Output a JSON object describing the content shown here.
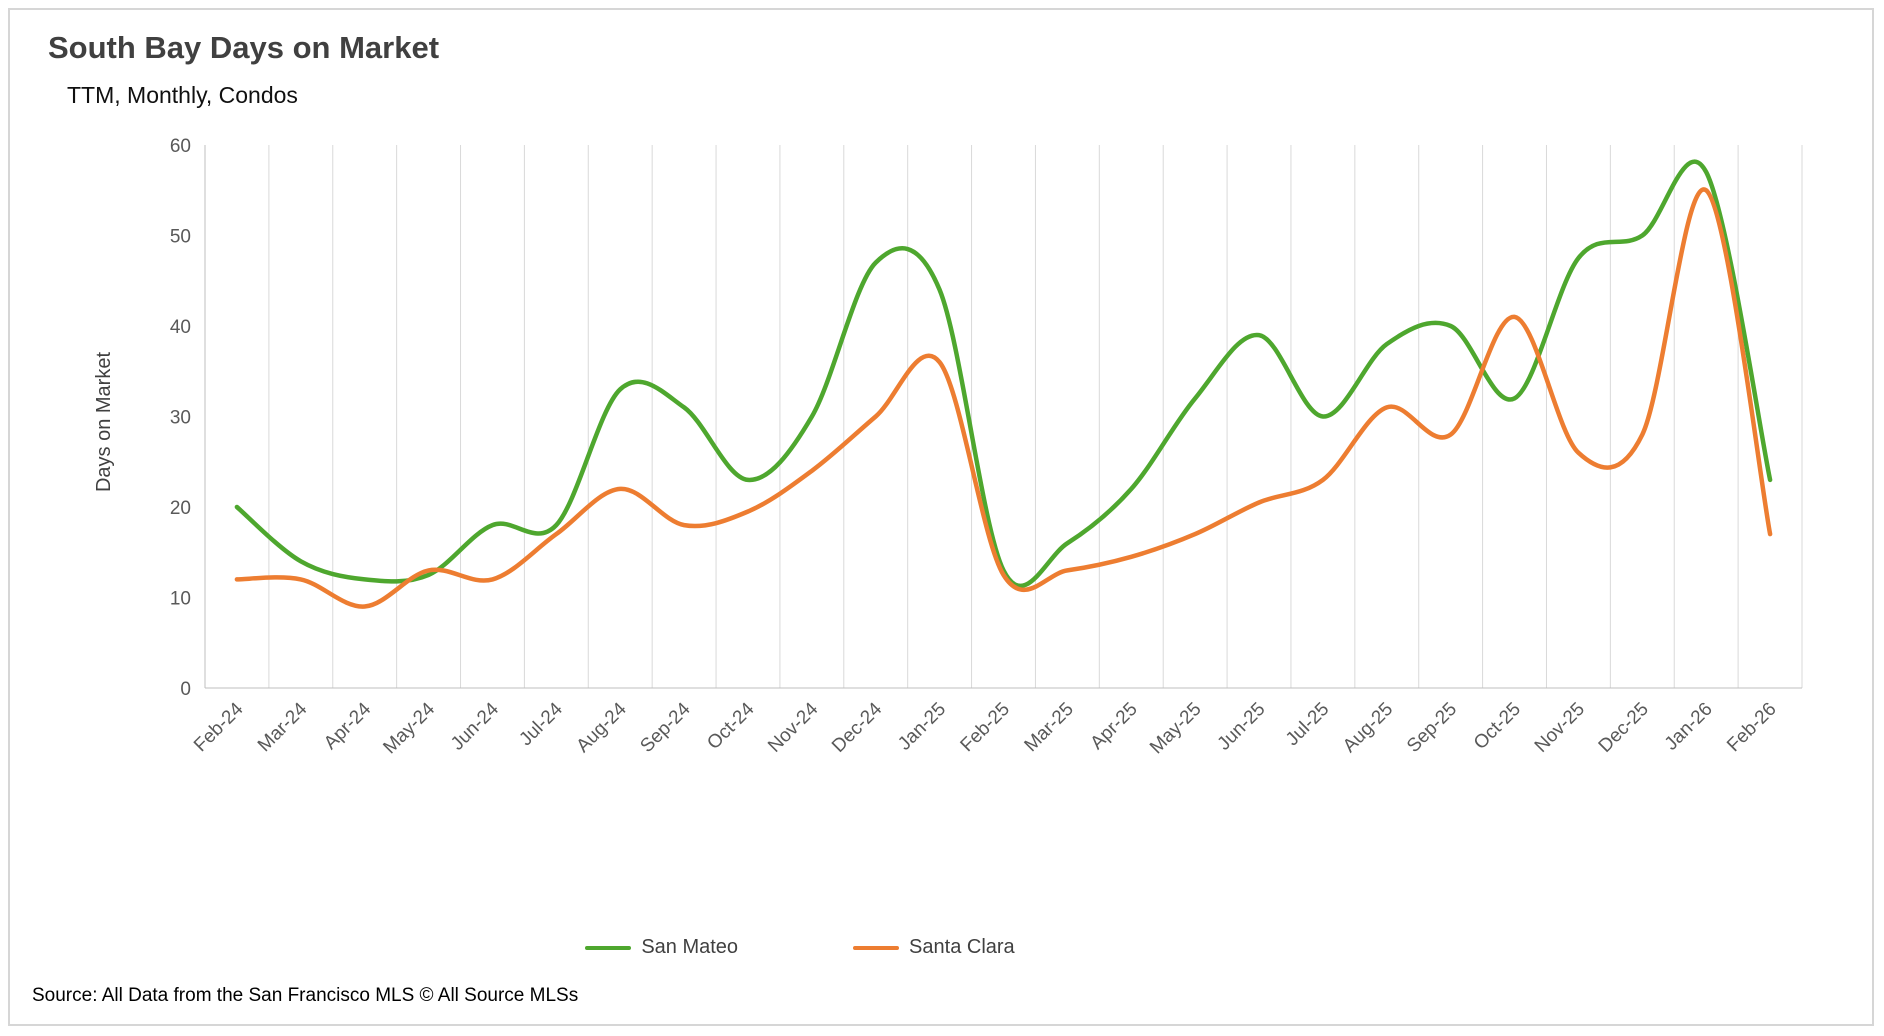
{
  "chart_data": {
    "type": "line",
    "smooth": true,
    "title": "South Bay Days on Market",
    "subtitle": "TTM, Monthly, Condos",
    "source": "Source: All Data from the San Francisco MLS © All Source MLSs",
    "xlabel": "",
    "ylabel": "Days on Market",
    "ylim": [
      0,
      60
    ],
    "y_ticks": [
      0,
      10,
      20,
      30,
      40,
      50,
      60
    ],
    "grid": "vertical-only",
    "gridline_color": "#d9d9d9",
    "axis_text_color": "#595959",
    "legend_position": "bottom-center",
    "categories": [
      "Feb-24",
      "Mar-24",
      "Apr-24",
      "May-24",
      "Jun-24",
      "Jul-24",
      "Aug-24",
      "Sep-24",
      "Oct-24",
      "Nov-24",
      "Dec-24",
      "Jan-25",
      "Feb-25",
      "Mar-25",
      "Apr-25",
      "May-25",
      "Jun-25",
      "Jul-25",
      "Aug-25",
      "Sep-25",
      "Oct-25",
      "Nov-25",
      "Dec-25",
      "Jan-26",
      "Feb-26"
    ],
    "series": [
      {
        "name": "San Mateo",
        "color": "#4EA72E",
        "values": [
          20,
          14,
          12,
          12.5,
          18,
          18,
          33,
          31,
          23,
          30,
          47,
          44,
          13,
          16,
          22,
          32,
          39,
          30,
          38,
          40,
          32,
          47.5,
          50,
          57,
          23
        ]
      },
      {
        "name": "Santa Clara",
        "color": "#ED7D31",
        "values": [
          12,
          12,
          9,
          13,
          12,
          17,
          22,
          18,
          19.5,
          24,
          30,
          36,
          12.5,
          13,
          14.5,
          17,
          20.5,
          23,
          31,
          28,
          41,
          26,
          28,
          55,
          17
        ]
      }
    ]
  }
}
